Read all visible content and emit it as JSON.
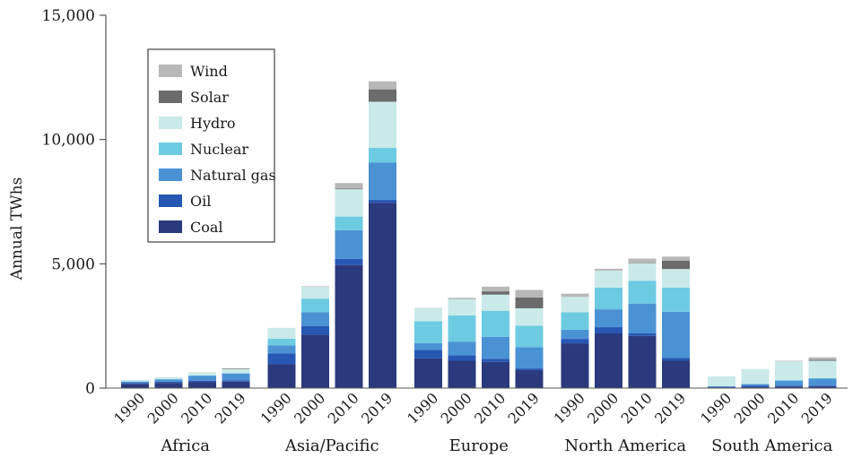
{
  "chart_data": {
    "type": "bar",
    "stacked": true,
    "ylabel": "Annual TWhs",
    "ylim": [
      0,
      15000
    ],
    "y_ticks": [
      "0",
      "5,000",
      "10,000",
      "15,000"
    ],
    "y_tick_values": [
      0,
      5000,
      10000,
      15000
    ],
    "groups": [
      {
        "name": "Africa",
        "years": [
          "1990",
          "2000",
          "2010",
          "2019"
        ]
      },
      {
        "name": "Asia/Pacific",
        "years": [
          "1990",
          "2000",
          "2010",
          "2019"
        ]
      },
      {
        "name": "Europe",
        "years": [
          "1990",
          "2000",
          "2010",
          "2019"
        ]
      },
      {
        "name": "North America",
        "years": [
          "1990",
          "2000",
          "2010",
          "2019"
        ]
      },
      {
        "name": "South America",
        "years": [
          "1990",
          "2000",
          "2010",
          "2019"
        ]
      }
    ],
    "series": [
      {
        "name": "Coal",
        "color": "#2b3a7c",
        "values": [
          [
            170,
            210,
            250,
            260
          ],
          [
            970,
            2150,
            4950,
            7450
          ],
          [
            1200,
            1100,
            1050,
            720
          ],
          [
            1800,
            2200,
            2100,
            1100
          ],
          [
            30,
            50,
            60,
            70
          ]
        ]
      },
      {
        "name": "Oil",
        "color": "#2557b3",
        "values": [
          [
            40,
            50,
            50,
            50
          ],
          [
            420,
            350,
            250,
            120
          ],
          [
            330,
            220,
            130,
            70
          ],
          [
            180,
            250,
            100,
            120
          ],
          [
            30,
            40,
            40,
            30
          ]
        ]
      },
      {
        "name": "Natural gas",
        "color": "#4b92d5",
        "values": [
          [
            50,
            90,
            200,
            280
          ],
          [
            330,
            550,
            1150,
            1500
          ],
          [
            280,
            550,
            880,
            850
          ],
          [
            370,
            720,
            1200,
            1850
          ],
          [
            10,
            70,
            200,
            280
          ]
        ]
      },
      {
        "name": "Nuclear",
        "color": "#6ccbe1",
        "values": [
          [
            10,
            10,
            10,
            10
          ],
          [
            270,
            550,
            550,
            600
          ],
          [
            880,
            1050,
            1050,
            870
          ],
          [
            700,
            870,
            920,
            970
          ],
          [
            5,
            10,
            20,
            20
          ]
        ]
      },
      {
        "name": "Hydro",
        "color": "#c9eae9",
        "values": [
          [
            60,
            80,
            110,
            160
          ],
          [
            430,
            480,
            1100,
            1850
          ],
          [
            530,
            650,
            650,
            700
          ],
          [
            620,
            680,
            700,
            750
          ],
          [
            400,
            600,
            760,
            700
          ]
        ]
      },
      {
        "name": "Solar",
        "color": "#6b6b6b",
        "values": [
          [
            0,
            0,
            0,
            20
          ],
          [
            0,
            0,
            30,
            500
          ],
          [
            0,
            0,
            130,
            440
          ],
          [
            0,
            0,
            20,
            330
          ],
          [
            0,
            0,
            0,
            40
          ]
        ]
      },
      {
        "name": "Wind",
        "color": "#b8b8b8",
        "values": [
          [
            0,
            0,
            10,
            20
          ],
          [
            0,
            20,
            220,
            320
          ],
          [
            10,
            60,
            190,
            300
          ],
          [
            130,
            80,
            170,
            170
          ],
          [
            0,
            0,
            20,
            100
          ]
        ]
      }
    ],
    "legend_order": [
      "Wind",
      "Solar",
      "Hydro",
      "Nuclear",
      "Natural gas",
      "Oil",
      "Coal"
    ],
    "legend_position": "top-left",
    "grid": false
  }
}
